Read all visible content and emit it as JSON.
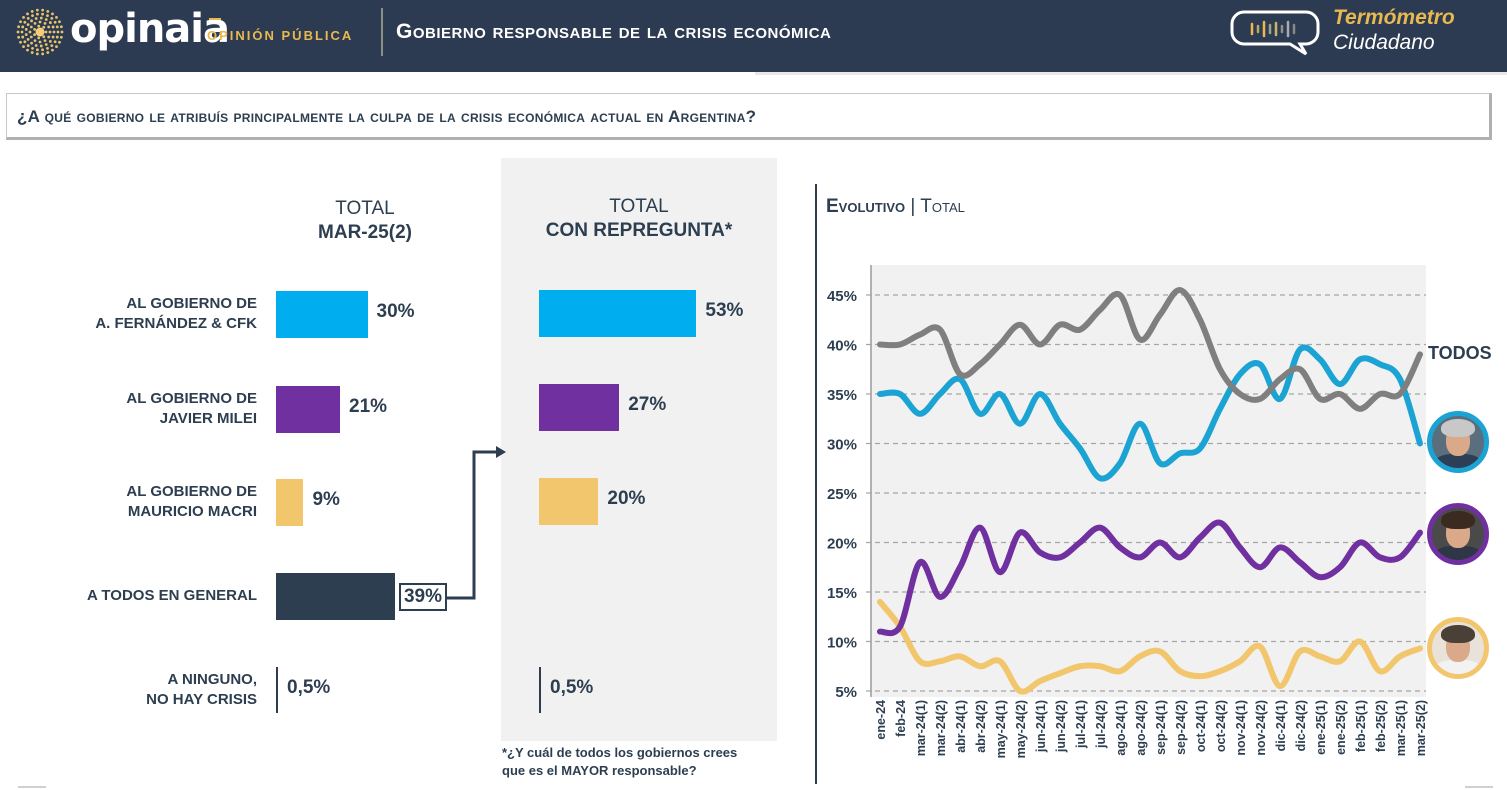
{
  "header": {
    "brand": "opinaia",
    "brand_sub": "OPINIÓN PÚBLICA",
    "title": "Gobierno responsable de la crisis económica",
    "product_line1": "Termómetro",
    "product_line2": "Ciudadano",
    "icons": {
      "logo": "dotted-sun-logo-icon",
      "product": "speech-bubble-soundwave-icon"
    }
  },
  "question": "¿A qué gobierno le atribuís principalmente la culpa de la crisis económica actual en Argentina?",
  "colors": {
    "fernandez": "#00aeef",
    "milei": "#7030a0",
    "macri": "#f2c66d",
    "todos": "#2d3e50",
    "todos_line": "#7f7f7f",
    "header_bg": "#2d3b52",
    "accent": "#e8b94f"
  },
  "chart_data": [
    {
      "type": "bar",
      "orientation": "horizontal",
      "title": "TOTAL MAR-25(2)",
      "title_line1": "TOTAL",
      "title_line2": "MAR-25(2)",
      "categories": [
        "AL GOBIERNO DE A. FERNÁNDEZ & CFK",
        "AL GOBIERNO DE JAVIER MILEI",
        "AL GOBIERNO DE MAURICIO MACRI",
        "A TODOS EN GENERAL",
        "A NINGUNO, NO HAY CRISIS"
      ],
      "category_lines": [
        [
          "AL GOBIERNO DE",
          "A. FERNÁNDEZ & CFK"
        ],
        [
          "AL GOBIERNO DE",
          "JAVIER MILEI"
        ],
        [
          "AL GOBIERNO DE",
          "MAURICIO MACRI"
        ],
        [
          "A TODOS EN GENERAL"
        ],
        [
          "A NINGUNO,",
          "NO HAY CRISIS"
        ]
      ],
      "values": [
        30,
        21,
        9,
        39,
        0.5
      ],
      "labels": [
        "30%",
        "21%",
        "9%",
        "39%",
        "0,5%"
      ],
      "highlighted": "39%"
    },
    {
      "type": "bar",
      "orientation": "horizontal",
      "title": "TOTAL CON REPREGUNTA*",
      "title_line1": "TOTAL",
      "title_line2": "CON REPREGUNTA*",
      "categories": [
        "AL GOBIERNO DE A. FERNÁNDEZ & CFK",
        "AL GOBIERNO DE JAVIER MILEI",
        "AL GOBIERNO DE MAURICIO MACRI",
        "A NINGUNO, NO HAY CRISIS"
      ],
      "values": [
        53,
        27,
        20,
        0.5
      ],
      "labels": [
        "53%",
        "27%",
        "20%",
        "0,5%"
      ],
      "footnote_line1": "*¿Y cuál de todos los gobiernos crees",
      "footnote_line2": "que es el MAYOR responsable?"
    },
    {
      "type": "line",
      "title": "EVOLUTIVO | TOTAL",
      "title_bold": "Evolutivo",
      "title_sep": "|",
      "title_rest": "Total",
      "x": [
        "ene-24",
        "feb-24",
        "mar-24(1)",
        "mar-24(2)",
        "abr-24(1)",
        "abr-24(2)",
        "may-24(1)",
        "may-24(2)",
        "jun-24(1)",
        "jun-24(2)",
        "jul-24(1)",
        "jul-24(2)",
        "ago-24(1)",
        "ago-24(2)",
        "sep-24(1)",
        "sep-24(2)",
        "oct-24(1)",
        "oct-24(2)",
        "nov-24(1)",
        "nov-24(2)",
        "dic-24(1)",
        "dic-24(2)",
        "ene-25(1)",
        "ene-25(2)",
        "feb-25(1)",
        "feb-25(2)",
        "mar-25(1)",
        "mar-25(2)"
      ],
      "yticks": [
        "5%",
        "10%",
        "15%",
        "20%",
        "25%",
        "30%",
        "35%",
        "40%",
        "45%"
      ],
      "ylim": [
        5,
        45
      ],
      "grid": true,
      "series": [
        {
          "name": "TODOS",
          "key": "todos",
          "label": "TODOS",
          "values": [
            40,
            40,
            41,
            41.5,
            37,
            38,
            40,
            42,
            40,
            42,
            41.5,
            43.5,
            45,
            40.5,
            43,
            45.5,
            42.5,
            37.5,
            35,
            34.5,
            36.5,
            37.5,
            34.5,
            35,
            33.5,
            35,
            35,
            39
          ]
        },
        {
          "name": "Fernández & CFK",
          "key": "fernandez",
          "values": [
            35,
            35,
            33,
            35,
            36.5,
            33,
            35,
            32,
            35,
            32,
            29.5,
            26.5,
            28,
            32,
            28,
            29,
            29.5,
            33.5,
            37,
            38,
            34.5,
            39.5,
            38.5,
            36,
            38.5,
            38,
            36.5,
            30
          ]
        },
        {
          "name": "Milei",
          "key": "milei",
          "values": [
            11,
            11.5,
            18,
            14.5,
            17.5,
            21.5,
            17,
            21,
            19,
            18.5,
            20,
            21.5,
            19.5,
            18.5,
            20,
            18.5,
            20.5,
            22,
            19.5,
            17.5,
            19.5,
            18,
            16.5,
            17.5,
            20,
            18.5,
            18.5,
            21
          ]
        },
        {
          "name": "Macri",
          "key": "macri",
          "values": [
            14,
            11.5,
            8,
            8,
            8.5,
            7.5,
            8,
            5,
            6,
            6.8,
            7.5,
            7.5,
            7,
            8.5,
            9,
            7,
            6.5,
            7,
            8,
            9.5,
            5.5,
            9,
            8.5,
            8,
            10,
            7,
            8.5,
            9.3
          ]
        }
      ]
    }
  ]
}
